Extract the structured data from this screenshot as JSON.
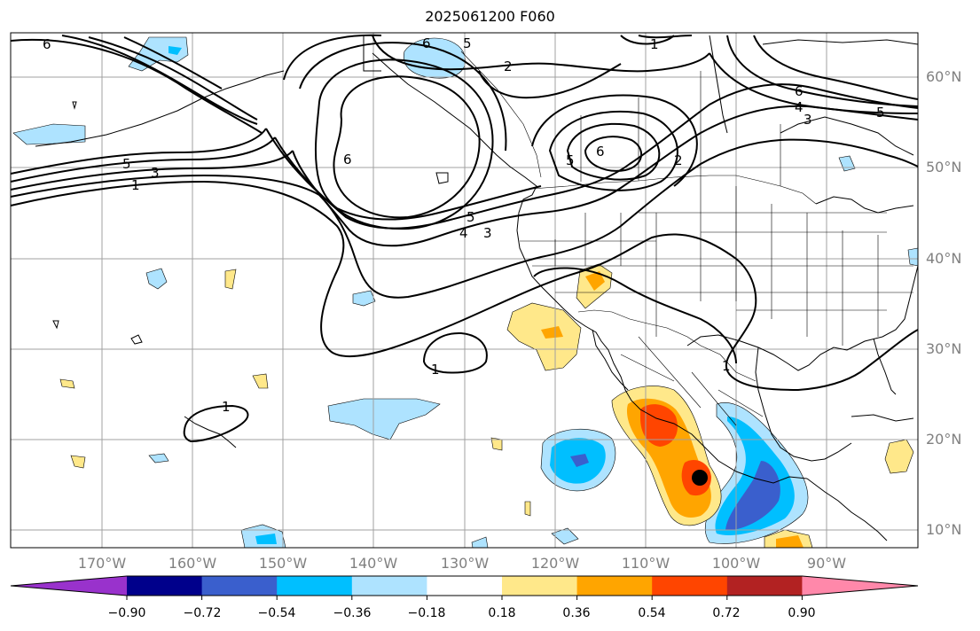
{
  "title": "2025061200 F060",
  "lat_labels": [
    "60°N",
    "50°N",
    "40°N",
    "30°N",
    "20°N",
    "10°N"
  ],
  "lon_labels": [
    "170°W",
    "160°W",
    "150°W",
    "140°W",
    "130°W",
    "120°W",
    "110°W",
    "100°W",
    "90°W"
  ],
  "contour_labels": {
    "c1": "1",
    "c2": "2",
    "c3": "3",
    "c4": "4",
    "c5": "5",
    "c6": "6"
  },
  "colorbar": {
    "ticks": [
      "−0.90",
      "−0.72",
      "−0.54",
      "−0.36",
      "−0.18",
      "0.18",
      "0.36",
      "0.54",
      "0.72",
      "0.90"
    ],
    "colors": [
      "#9932cc",
      "#00008b",
      "#3a5fcd",
      "#00bfff",
      "#aee3ff",
      "#ffffff",
      "#ffe88a",
      "#ffa500",
      "#ff4500",
      "#b22222",
      "#ff88aa"
    ]
  },
  "colors": {
    "contour": "#000000",
    "coast": "#000000",
    "grid": "#a0a0a0",
    "marker": "#000000"
  }
}
